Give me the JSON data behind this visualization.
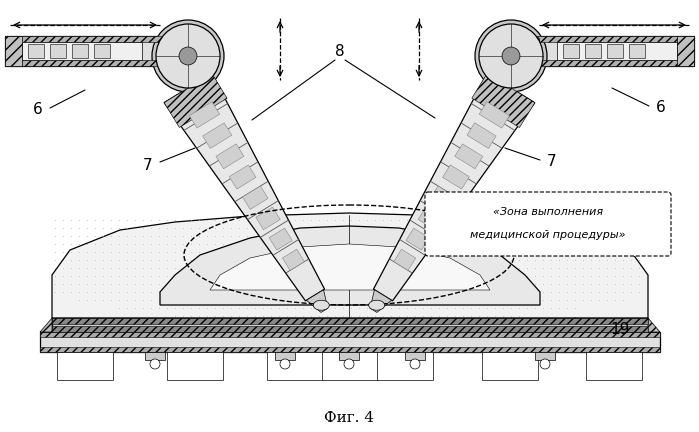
{
  "bg_color": "#ffffff",
  "label_6_left": "6",
  "label_6_right": "6",
  "label_7_left": "7",
  "label_7_right": "7",
  "label_8": "8",
  "label_19": "19",
  "callout_line1": "«Зона выполнения",
  "callout_line2": "медицинской процедуры»",
  "fig_label": "Фиг. 4",
  "lw_thin": 0.5,
  "lw_med": 0.9,
  "lw_thick": 1.4
}
